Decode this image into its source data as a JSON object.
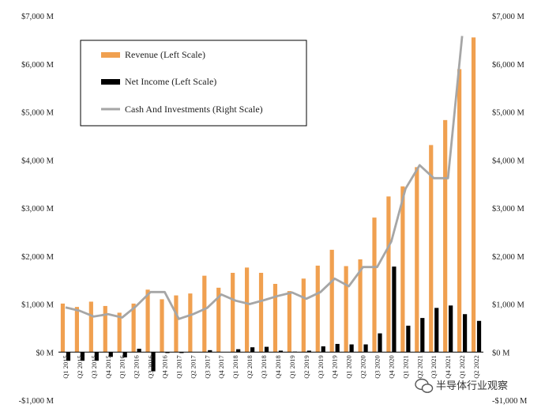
{
  "chart_data": {
    "type": "bar",
    "categories": [
      "Q1 2015",
      "Q2 2015",
      "Q3 2015",
      "Q4 2015",
      "Q1 2016",
      "Q2 2016",
      "Q3 2016",
      "Q4 2016",
      "Q1 2017",
      "Q2 2017",
      "Q3 2017",
      "Q4 2017",
      "Q1 2018",
      "Q2 2018",
      "Q3 2018",
      "Q4 2018",
      "Q1 2019",
      "Q2 2019",
      "Q3 2019",
      "Q4 2019",
      "Q1 2020",
      "Q2 2020",
      "Q3 2020",
      "Q4 2020",
      "Q1 2021",
      "Q2 2021",
      "Q3 2021",
      "Q4 2021",
      "Q1 2022",
      "Q2 2022"
    ],
    "x_tick_labels": [
      "Q1 2015",
      "Q2 2015",
      "Q3 2015",
      "Q4 2015",
      "Q1 2016",
      "Q2 2016",
      "Q3 2016",
      "Q4 2016",
      "Q1 2017",
      "Q2 2017",
      "Q3 2017",
      "Q4 2017",
      "Q1 2018",
      "Q2 2018",
      "Q3 2018",
      "Q4 2018",
      "Q1 2019",
      "Q2 2019",
      "Q3 2019",
      "Q4 2019",
      "Q1 2020",
      "Q2 2020",
      "Q3 2020",
      "Q4 2020",
      "Q1 2021",
      "Q2 2021",
      "Q3 2021",
      "Q4 2021",
      "Q1 2022",
      "Q2 2022"
    ],
    "series": [
      {
        "name": "Revenue (Left Scale)",
        "kind": "bar",
        "axis": "left",
        "color": "#f0a050",
        "values": [
          1010,
          940,
          1050,
          960,
          820,
          1010,
          1300,
          1100,
          1180,
          1220,
          1590,
          1340,
          1650,
          1760,
          1650,
          1420,
          1270,
          1530,
          1800,
          2130,
          1790,
          1930,
          2800,
          3240,
          3450,
          3850,
          4310,
          4830,
          5890,
          6550
        ]
      },
      {
        "name": "Net Income (Left Scale)",
        "kind": "bar",
        "axis": "left",
        "color": "#000000",
        "values": [
          -180,
          -180,
          -180,
          -100,
          -110,
          70,
          -400,
          -20,
          -20,
          0,
          40,
          0,
          60,
          100,
          110,
          30,
          10,
          30,
          120,
          170,
          160,
          160,
          390,
          1780,
          550,
          710,
          920,
          970,
          790,
          650
        ]
      },
      {
        "name": "Cash And Investments (Right Scale)",
        "kind": "line",
        "axis": "right",
        "color": "#a6a6a6",
        "values": [
          930,
          860,
          740,
          790,
          720,
          960,
          1250,
          1250,
          690,
          790,
          920,
          1200,
          1070,
          1000,
          1080,
          1170,
          1240,
          1110,
          1250,
          1530,
          1370,
          1770,
          1770,
          2300,
          3400,
          3890,
          3620,
          3620,
          6580,
          null
        ]
      }
    ],
    "y_left": {
      "min": -1000,
      "max": 7000,
      "ticks": [
        -1000,
        0,
        1000,
        2000,
        3000,
        4000,
        5000,
        6000,
        7000
      ],
      "tick_labels": [
        "-$1,000 M",
        "$0 M",
        "$1,000 M",
        "$2,000 M",
        "$3,000 M",
        "$4,000 M",
        "$5,000 M",
        "$6,000 M",
        "$7,000 M"
      ]
    },
    "y_right": {
      "min": -1000,
      "max": 7000,
      "ticks": [
        -1000,
        0,
        1000,
        2000,
        3000,
        4000,
        5000,
        6000,
        7000
      ],
      "tick_labels": [
        "-$1,000 M",
        "$0 M",
        "$1,000 M",
        "$2,000 M",
        "$3,000 M",
        "$4,000 M",
        "$5,000 M",
        "$6,000 M",
        "$7,000 M"
      ]
    },
    "grid": false,
    "legend": {
      "position": "top-left",
      "entries": [
        "Revenue (Left Scale)",
        "Net Income (Left Scale)",
        "Cash And Investments (Right Scale)"
      ]
    }
  },
  "watermark": {
    "text": "半导体行业观察",
    "icon": "wechat-logo-icon"
  }
}
